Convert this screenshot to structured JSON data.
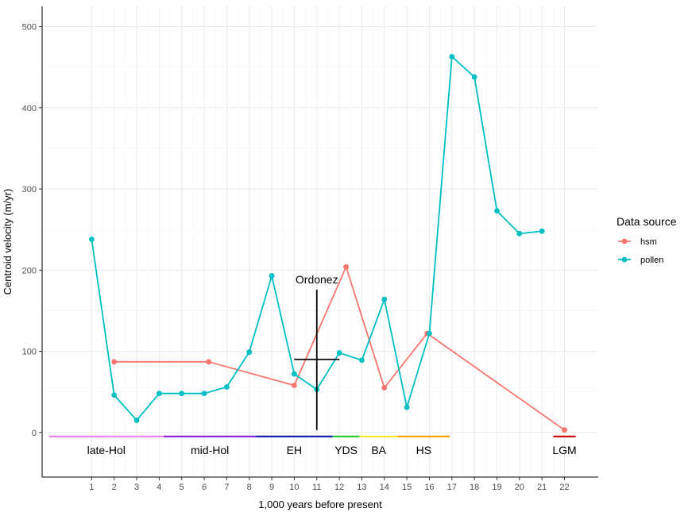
{
  "chart_data": {
    "type": "line",
    "xlabel": "1,000 years before present",
    "ylabel": "Centroid velocity (m/yr)",
    "xlim": [
      -1.2,
      23.5
    ],
    "ylim": [
      -55,
      525
    ],
    "x_ticks": [
      1,
      2,
      3,
      4,
      5,
      6,
      7,
      8,
      9,
      10,
      11,
      12,
      13,
      14,
      15,
      16,
      17,
      18,
      19,
      20,
      21,
      22
    ],
    "y_ticks": [
      0,
      100,
      200,
      300,
      400,
      500
    ],
    "grid": true,
    "legend": {
      "title": "Data source",
      "position": "right",
      "entries": [
        {
          "label": "hsm",
          "color": "#F8766D"
        },
        {
          "label": "pollen",
          "color": "#00BFC4"
        }
      ]
    },
    "series": [
      {
        "name": "hsm",
        "color": "#F8766D",
        "x": [
          2,
          6.2,
          10,
          12.3,
          14,
          15.9,
          22
        ],
        "y": [
          87,
          87,
          58,
          204,
          55,
          122,
          3
        ]
      },
      {
        "name": "pollen",
        "color": "#00BFC4",
        "x": [
          1,
          2,
          3,
          4,
          5,
          6,
          7,
          8,
          9,
          10,
          11,
          12,
          13,
          14,
          15,
          16,
          17,
          18,
          19,
          20,
          21
        ],
        "y": [
          238,
          46,
          15,
          48,
          48,
          48,
          56,
          99,
          193,
          72,
          53,
          98,
          89,
          164,
          31,
          122,
          463,
          438,
          273,
          245,
          248
        ]
      }
    ],
    "periods": [
      {
        "label": "late-Hol",
        "start": -0.9,
        "end": 4.2,
        "color": "#EE82EE"
      },
      {
        "label": "mid-Hol",
        "start": 4.2,
        "end": 8.3,
        "color": "#8B2BD6"
      },
      {
        "label": "EH",
        "start": 8.3,
        "end": 11.7,
        "color": "#1E20B4"
      },
      {
        "label": "YDS",
        "start": 11.7,
        "end": 12.9,
        "color": "#2ECC40"
      },
      {
        "label": "BA",
        "start": 12.9,
        "end": 14.6,
        "color": "#FFE733"
      },
      {
        "label": "HS",
        "start": 14.6,
        "end": 16.9,
        "color": "#FFA500"
      },
      {
        "label": "LGM",
        "start": 21.5,
        "end": 22.5,
        "color": "#CC1111"
      }
    ],
    "annotation": {
      "label": "Ordonez",
      "x": 11,
      "y": 90,
      "x_range": [
        10,
        12
      ],
      "y_range": [
        3,
        176
      ]
    }
  }
}
